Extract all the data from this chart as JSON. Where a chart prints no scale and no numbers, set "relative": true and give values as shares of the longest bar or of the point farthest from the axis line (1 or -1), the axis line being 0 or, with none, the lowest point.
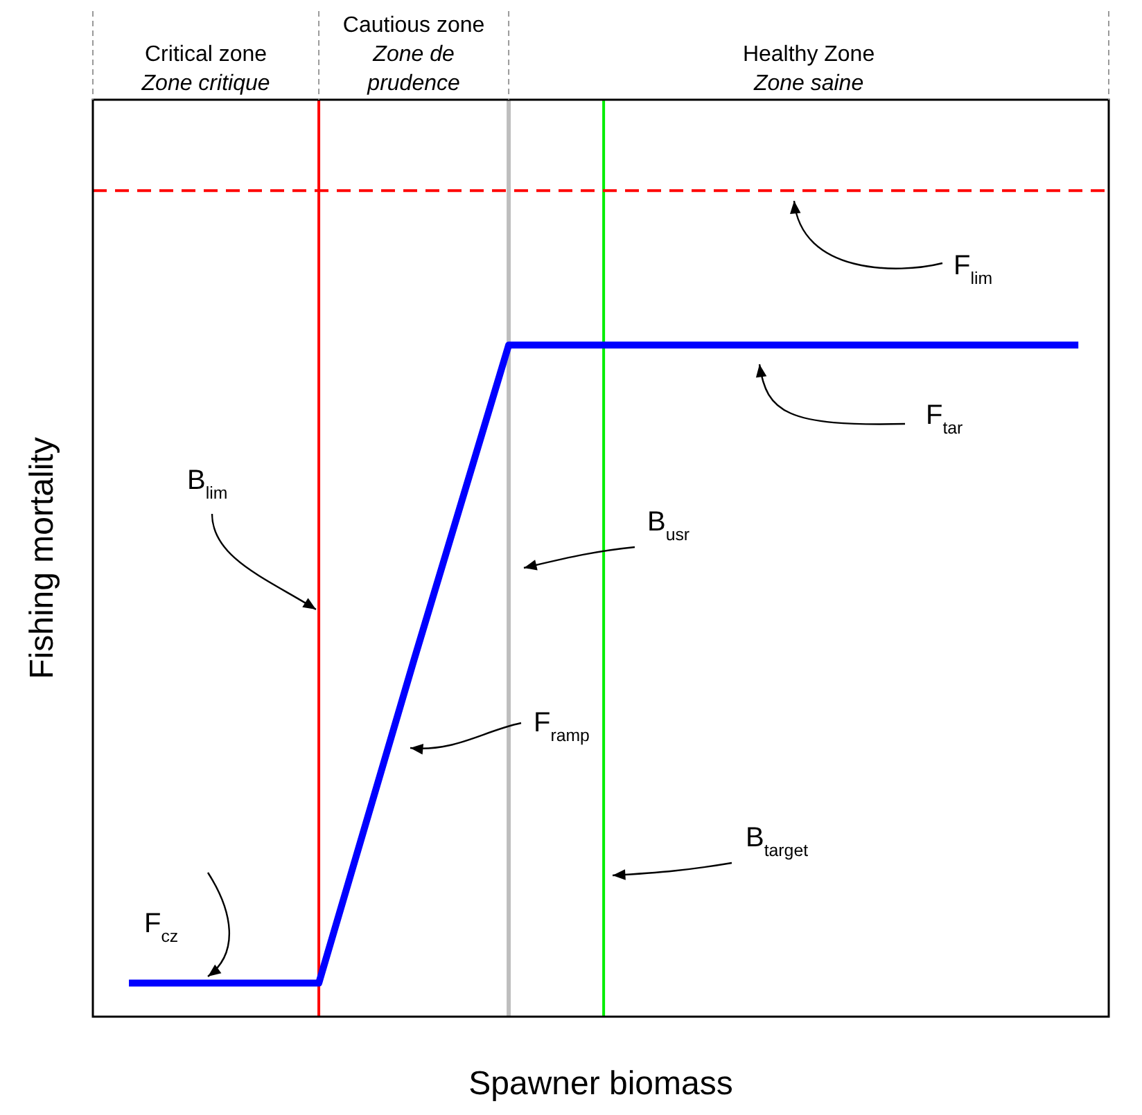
{
  "chart_data": {
    "type": "line",
    "relative": true,
    "xlabel": "Spawner biomass",
    "ylabel": "Fishing mortality",
    "categories": [
      null,
      null,
      null,
      null,
      null,
      null,
      null,
      null,
      null,
      null,
      null
    ],
    "series": [
      {
        "color": "#0000ff",
        "values": [
          0.05,
          0.05,
          0.05,
          0.53,
          1,
          1,
          1,
          1,
          1,
          1,
          1
        ]
      }
    ],
    "ref_lines": [
      {
        "axis": "y",
        "value": 1.23,
        "label": "F$_{lim}$",
        "color": "#ff0000",
        "line_style": "dashed"
      }
    ],
    "annotations": [
      "B$_{lim}$",
      "B$_{usr}$",
      "B$_{target}$",
      "F$_{tar}$",
      "F$_{ramp}$",
      "F$_{cz}$",
      "Critical zone\nZone critique",
      "Cautious zone\nZone de\nprudence",
      "Healthy Zone\nZone saine"
    ],
    "legend": false,
    "grid": false,
    "marker": "none",
    "line_style": "solid"
  }
}
